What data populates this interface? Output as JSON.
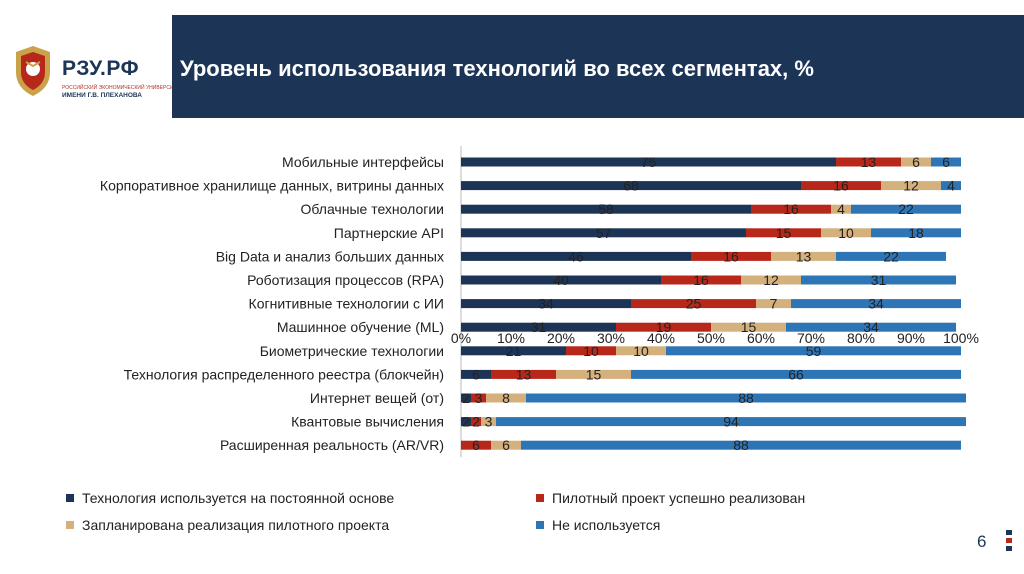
{
  "header": {
    "title": "Уровень использования технологий во всех сегментах, %",
    "brand": "РЗУ.РФ",
    "brand_sub1": "РОССИЙСКИЙ ЭКОНОМИЧЕСКИЙ УНИВЕРСИТЕТ",
    "brand_sub2": "ИМЕНИ Г.В. ПЛЕХАНОВА"
  },
  "page_number": "6",
  "colors": {
    "header_bg": "#1c3557",
    "series": [
      "#1c3557",
      "#b8281a",
      "#d3b07c",
      "#2e75b6"
    ]
  },
  "chart_data": {
    "type": "bar",
    "orientation": "horizontal",
    "stacked": true,
    "title": "Уровень использования технологий во всех сегментах, %",
    "xlim": [
      0,
      100
    ],
    "x_ticks": [
      "0%",
      "10%",
      "20%",
      "30%",
      "40%",
      "50%",
      "60%",
      "70%",
      "80%",
      "90%",
      "100%"
    ],
    "legend_position": "bottom",
    "categories": [
      "Мобильные интерфейсы",
      "Корпоративное хранилище данных, витрины данных",
      "Облачные технологии",
      "Партнерские API",
      "Big Data и анализ больших данных",
      "Роботизация процессов (RPA)",
      "Когнитивные технологии с ИИ",
      "Машинное обучение (ML)",
      "Биометрические технологии",
      "Технология распределенного реестра (блокчейн)",
      "Интернет вещей (от)",
      "Квантовые вычисления",
      "Расширенная реальность (AR/VR)"
    ],
    "series": [
      {
        "name": "Технология используется на постоянной основе",
        "values": [
          75,
          68,
          58,
          57,
          46,
          40,
          34,
          31,
          21,
          6,
          2,
          2,
          0
        ]
      },
      {
        "name": "Пилотный проект успешно реализован",
        "values": [
          13,
          16,
          16,
          15,
          16,
          16,
          25,
          19,
          10,
          13,
          3,
          2,
          6
        ]
      },
      {
        "name": "Запланирована реализация пилотного проекта",
        "values": [
          6,
          12,
          4,
          10,
          13,
          12,
          7,
          15,
          10,
          15,
          8,
          3,
          6
        ]
      },
      {
        "name": "Не используется",
        "values": [
          6,
          4,
          22,
          18,
          22,
          31,
          34,
          34,
          59,
          66,
          88,
          94,
          88
        ]
      }
    ]
  }
}
